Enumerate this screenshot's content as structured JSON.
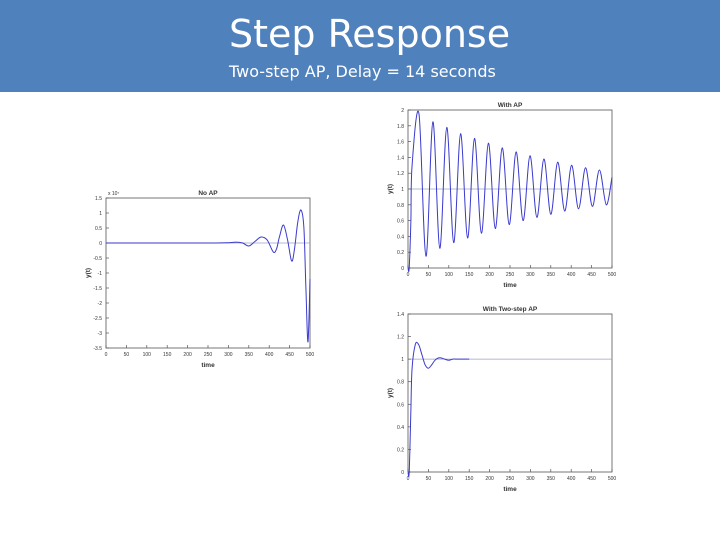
{
  "slide": {
    "title": "Step Response",
    "subtitle": "Two-step AP, Delay = 14 seconds"
  },
  "colors": {
    "header_bg": "#4f81bd",
    "header_text": "#ffffff",
    "line": "#3a3acc",
    "reference": "#9aa0c8",
    "axis": "#555555"
  },
  "chart_data": [
    {
      "id": "noap",
      "type": "line",
      "title": "No AP",
      "xlabel": "time",
      "ylabel": "y(t)",
      "exponent_label": "x 10⁷",
      "xlim": [
        0,
        500
      ],
      "ylim": [
        -3.5,
        1.5
      ],
      "xticks": [
        0,
        50,
        100,
        150,
        200,
        250,
        300,
        350,
        400,
        450,
        500
      ],
      "xtick_labels": [
        "0",
        "50",
        "100",
        "150",
        "200",
        "250",
        "300",
        "350",
        "400",
        "450",
        "500"
      ],
      "yticks": [
        1.5,
        1,
        0.5,
        0,
        -0.5,
        -1,
        -1.5,
        -2,
        -2.5,
        -3,
        -3.5
      ],
      "ytick_labels": [
        "1.5",
        "1",
        "0.5",
        "0",
        "-0.5",
        "-1",
        "-1.5",
        "-2",
        "-2.5",
        "-3",
        "-3.5"
      ],
      "reference": 0,
      "series": [
        {
          "x": [
            0,
            100,
            200,
            260,
            300,
            320,
            335,
            350,
            365,
            380,
            395,
            410,
            418,
            425,
            435,
            445,
            455,
            462,
            470,
            478,
            485,
            490,
            495,
            500
          ],
          "y": [
            0,
            0,
            0,
            0,
            0.01,
            0.03,
            0.0,
            -0.1,
            0.05,
            0.2,
            0.1,
            -0.3,
            -0.2,
            0.2,
            0.6,
            0.1,
            -0.6,
            -0.2,
            0.7,
            1.1,
            0.5,
            -1.5,
            -3.3,
            -1.2
          ]
        }
      ]
    },
    {
      "id": "withap",
      "type": "line",
      "title": "With AP",
      "xlabel": "time",
      "ylabel": "y(t)",
      "xlim": [
        0,
        500
      ],
      "ylim": [
        0,
        2
      ],
      "xticks": [
        0,
        50,
        100,
        150,
        200,
        250,
        300,
        350,
        400,
        450,
        500
      ],
      "xtick_labels": [
        "0",
        "50",
        "100",
        "150",
        "200",
        "250",
        "300",
        "350",
        "400",
        "450",
        "500"
      ],
      "yticks": [
        0,
        0.2,
        0.4,
        0.6,
        0.8,
        1,
        1.2,
        1.4,
        1.6,
        1.8,
        2
      ],
      "ytick_labels": [
        "0",
        "0.2",
        "0.4",
        "0.6",
        "0.8",
        "1",
        "1.2",
        "1.4",
        "1.6",
        "1.8",
        "2"
      ],
      "reference": 1,
      "series": [
        {
          "x": [
            0,
            3,
            7,
            10,
            27,
            44,
            61,
            78,
            95,
            112,
            129,
            146,
            163,
            180,
            197,
            214,
            231,
            248,
            265,
            282,
            299,
            316,
            333,
            350,
            367,
            384,
            401,
            418,
            435,
            452,
            469,
            486,
            500
          ],
          "y": [
            0,
            0,
            0.6,
            1.3,
            1.95,
            0.15,
            1.85,
            0.25,
            1.78,
            0.32,
            1.7,
            0.38,
            1.64,
            0.44,
            1.58,
            0.5,
            1.52,
            0.55,
            1.47,
            0.6,
            1.42,
            0.64,
            1.38,
            0.68,
            1.34,
            0.72,
            1.3,
            0.75,
            1.27,
            0.78,
            1.24,
            0.8,
            1.15
          ]
        }
      ]
    },
    {
      "id": "twostep",
      "type": "line",
      "title": "With Two-step AP",
      "xlabel": "time",
      "ylabel": "y(t)",
      "xlim": [
        0,
        500
      ],
      "ylim": [
        0,
        1.4
      ],
      "xticks": [
        0,
        50,
        100,
        150,
        200,
        250,
        300,
        350,
        400,
        450,
        500
      ],
      "xtick_labels": [
        "0",
        "50",
        "100",
        "150",
        "200",
        "250",
        "300",
        "350",
        "400",
        "450",
        "500"
      ],
      "yticks": [
        0,
        0.2,
        0.4,
        0.6,
        0.8,
        1,
        1.2,
        1.4
      ],
      "ytick_labels": [
        "0",
        "0.2",
        "0.4",
        "0.6",
        "0.8",
        "1",
        "1.2",
        "1.4"
      ],
      "reference": 1,
      "series": [
        {
          "x": [
            0,
            3,
            7,
            10,
            18,
            26,
            34,
            42,
            50,
            58,
            66,
            74,
            82,
            90,
            100,
            110,
            120,
            130,
            140,
            150
          ],
          "y": [
            0,
            0,
            0.55,
            0.92,
            1.13,
            1.13,
            1.04,
            0.95,
            0.92,
            0.95,
            0.99,
            1.01,
            1.01,
            1.0,
            0.99,
            1.0,
            1.0,
            1.0,
            1.0,
            1.0
          ]
        }
      ]
    }
  ]
}
